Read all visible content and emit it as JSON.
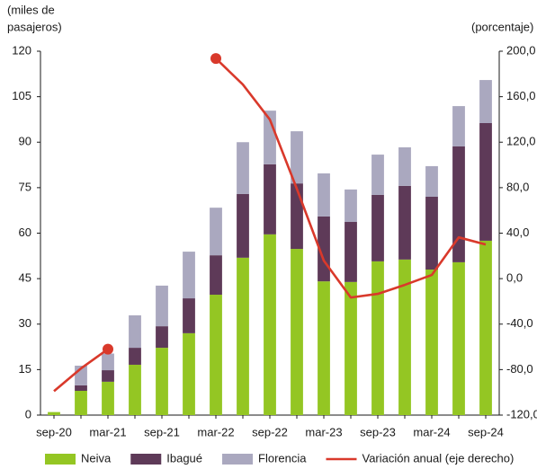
{
  "chart_data": {
    "type": "bar",
    "stacked": true,
    "y_label": [
      "(miles de",
      "pasajeros)"
    ],
    "y2_label": "(porcentaje)",
    "categories": [
      "sep-20",
      null,
      "mar-21",
      null,
      "sep-21",
      null,
      "mar-22",
      null,
      "sep-22",
      null,
      "mar-23",
      null,
      "sep-23",
      null,
      "mar-24",
      null,
      "sep-24"
    ],
    "series": [
      {
        "name": "Neiva",
        "type": "bar",
        "color": "#94c623",
        "values": [
          1,
          8,
          11,
          16.6,
          22.2,
          27,
          39.7,
          51.9,
          59.6,
          54.8,
          44.1,
          43.9,
          50.7,
          51.3,
          48,
          50.4,
          57.5
        ]
      },
      {
        "name": "Ibagué",
        "type": "bar",
        "color": "#5e3a58",
        "values": [
          0,
          1.8,
          3.8,
          5.6,
          7.1,
          11.5,
          13,
          21,
          23.1,
          21.6,
          21.4,
          19.8,
          21.9,
          24.3,
          24,
          38.2,
          38.8
        ]
      },
      {
        "name": "Florencia",
        "type": "bar",
        "color": "#aaa8bf",
        "values": [
          0,
          6.5,
          5.5,
          10.7,
          13.4,
          15.4,
          15.7,
          17.1,
          17.7,
          17.2,
          14.2,
          10.7,
          13.3,
          12.7,
          10.1,
          13.3,
          14.2
        ]
      },
      {
        "name": "Variación anual (eje derecho)",
        "type": "line",
        "axis": "y2",
        "color": "#d9392b",
        "values": [
          -99,
          -79,
          -62,
          null,
          null,
          null,
          193.6,
          170.7,
          139.9,
          79,
          15.8,
          -16.6,
          -13.4,
          -5.5,
          3.2,
          36.3,
          30
        ]
      }
    ],
    "ylim": [
      0,
      120
    ],
    "yticks": [
      0,
      15,
      30,
      45,
      60,
      75,
      90,
      105,
      120
    ],
    "y2lim": [
      -120,
      200
    ],
    "y2ticks": [
      {
        "value": -120,
        "label": "-120,0"
      },
      {
        "value": -80,
        "label": "-80,0"
      },
      {
        "value": -40,
        "label": "-40,0"
      },
      {
        "value": 0,
        "label": "0,0"
      },
      {
        "value": 40,
        "label": "40,0"
      },
      {
        "value": 80,
        "label": "80,0"
      },
      {
        "value": 120,
        "label": "120,0"
      },
      {
        "value": 160,
        "label": "160,0"
      },
      {
        "value": 200,
        "label": "200,0"
      }
    ],
    "legend": "bottom"
  }
}
